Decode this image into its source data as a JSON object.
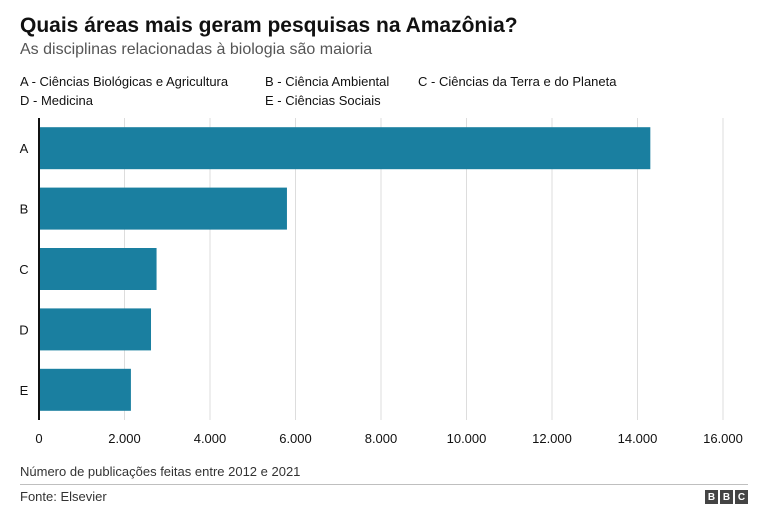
{
  "header": {
    "title": "Quais áreas mais geram pesquisas na Amazônia?",
    "subtitle": "As disciplinas relacionadas à biologia são maioria"
  },
  "legend": [
    "A - Ciências Biológicas e Agricultura",
    "B - Ciência Ambiental",
    "C - Ciências da Terra e do Planeta",
    "D - Medicina",
    "E - Ciências Sociais"
  ],
  "footer": {
    "note": "Número de publicações feitas entre 2012 e 2021",
    "source": "Fonte: Elsevier",
    "logo_letters": [
      "B",
      "B",
      "C"
    ]
  },
  "colors": {
    "bar": "#1a7fa0",
    "grid": "#dddddd",
    "axis": "#111111"
  },
  "chart_data": {
    "type": "bar",
    "orientation": "horizontal",
    "categories": [
      "A",
      "B",
      "C",
      "D",
      "E"
    ],
    "values": [
      14300,
      5800,
      2750,
      2620,
      2150
    ],
    "title": "Quais áreas mais geram pesquisas na Amazônia?",
    "subtitle": "As disciplinas relacionadas à biologia são maioria",
    "xlabel": "Número de publicações feitas entre 2012 e 2021",
    "ylabel": "",
    "xlim": [
      0,
      16000
    ],
    "xticks": [
      0,
      2000,
      4000,
      6000,
      8000,
      10000,
      12000,
      14000,
      16000
    ],
    "xtick_labels": [
      "0",
      "2.000",
      "4.000",
      "6.000",
      "8.000",
      "10.000",
      "12.000",
      "14.000",
      "16.000"
    ],
    "grid": "vertical",
    "legend_placement": "top"
  }
}
